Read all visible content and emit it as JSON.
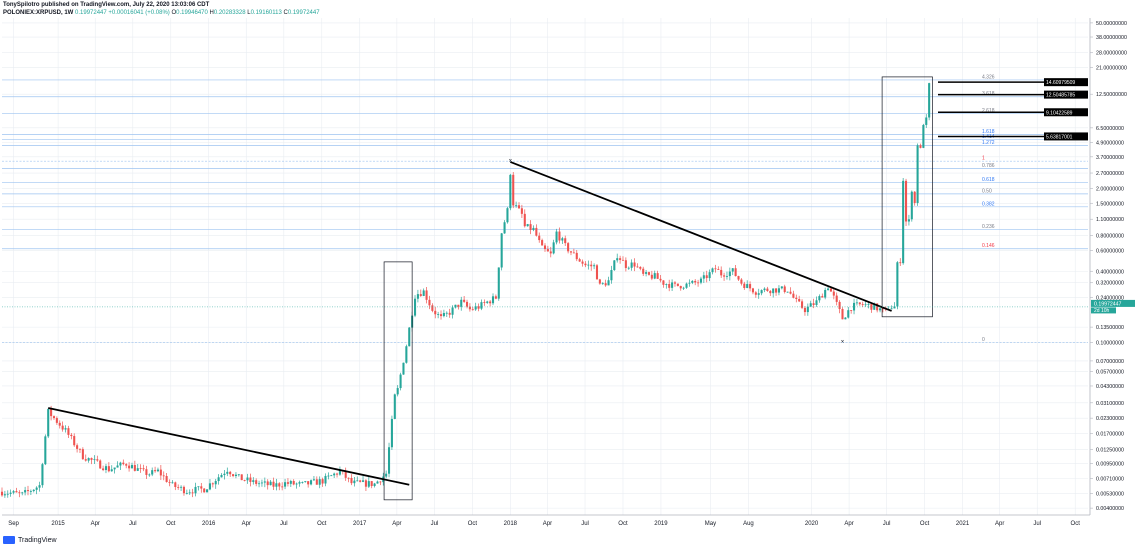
{
  "header": {
    "publisher_line": "TonySpilotro published on TradingView.com, July 22, 2020 13:03:06 CDT",
    "symbol": "POLONIEX:XRPUSD, 1W",
    "last_price": "0.19972447",
    "change": "+0.00016041 (+0.08%)",
    "o_label": "O",
    "o": "0.19946470",
    "h_label": "H",
    "h": "0.20283328",
    "l_label": "L",
    "l": "0.19160113",
    "c_label": "C",
    "c": "0.19972447"
  },
  "footer": {
    "brand": "TradingView"
  },
  "colors": {
    "up": "#26a69a",
    "down": "#ef5350",
    "grid": "#e9edf2",
    "fib": "#9ec3f0",
    "axis": "#b2b5be"
  },
  "chart_data": {
    "type": "candlestick",
    "price_scale": "log",
    "ylim": [
      0.0035,
      55
    ],
    "x_range": [
      "2014-08-18",
      "2021-11-01"
    ],
    "x_ticks": [
      {
        "date": "2014-09-15",
        "label": "Sep"
      },
      {
        "date": "2015-01-01",
        "label": "2015"
      },
      {
        "date": "2015-04-01",
        "label": "Apr"
      },
      {
        "date": "2015-07-01",
        "label": "Jul"
      },
      {
        "date": "2015-10-01",
        "label": "Oct"
      },
      {
        "date": "2016-01-01",
        "label": "2016"
      },
      {
        "date": "2016-04-01",
        "label": "Apr"
      },
      {
        "date": "2016-07-01",
        "label": "Jul"
      },
      {
        "date": "2016-10-01",
        "label": "Oct"
      },
      {
        "date": "2017-01-01",
        "label": "2017"
      },
      {
        "date": "2017-04-01",
        "label": "Apr"
      },
      {
        "date": "2017-07-01",
        "label": "Jul"
      },
      {
        "date": "2017-10-01",
        "label": "Oct"
      },
      {
        "date": "2018-01-01",
        "label": "2018"
      },
      {
        "date": "2018-04-01",
        "label": "Apr"
      },
      {
        "date": "2018-07-01",
        "label": "Jul"
      },
      {
        "date": "2018-10-01",
        "label": "Oct"
      },
      {
        "date": "2019-01-01",
        "label": "2019"
      },
      {
        "date": "2019-05-01",
        "label": "May"
      },
      {
        "date": "2019-08-01",
        "label": "Aug"
      },
      {
        "date": "2020-01-01",
        "label": "2020"
      },
      {
        "date": "2020-04-01",
        "label": "Apr"
      },
      {
        "date": "2020-07-01",
        "label": "Jul"
      },
      {
        "date": "2020-10-01",
        "label": "Oct"
      },
      {
        "date": "2021-01-01",
        "label": "2021"
      },
      {
        "date": "2021-04-01",
        "label": "Apr"
      },
      {
        "date": "2021-07-01",
        "label": "Jul"
      },
      {
        "date": "2021-10-01",
        "label": "Oct"
      }
    ],
    "y_ticks": [
      50,
      38,
      28,
      21,
      12.5,
      6.5,
      4.9,
      3.7,
      2.7,
      2.0,
      1.5,
      1.1,
      0.8,
      0.6,
      0.4,
      0.32,
      0.24,
      0.135,
      0.1,
      0.07,
      0.057,
      0.043,
      0.031,
      0.023,
      0.017,
      0.0125,
      0.0095,
      0.0071,
      0.0053,
      0.004
    ],
    "y_tick_labels": [
      "50.00000000",
      "38.00000000",
      "28.00000000",
      "21.00000000",
      "12.50000000",
      "6.50000000",
      "4.90000000",
      "3.70000000",
      "2.70000000",
      "2.00000000",
      "1.50000000",
      "1.10000000",
      "0.80000000",
      "0.60000000",
      "0.40000000",
      "0.32000000",
      "0.24000000",
      "0.13500000",
      "0.10000000",
      "0.07000000",
      "0.05700000",
      "0.04300000",
      "0.03100000",
      "0.02300000",
      "0.01700000",
      "0.01250000",
      "0.00950000",
      "0.00710000",
      "0.00530000",
      "0.00400000"
    ],
    "last_price_label": "0.19972447",
    "countdown_label": "2d 10h",
    "fib_levels": [
      {
        "ratio": "4.326",
        "price": 16.5,
        "color": "#787b86"
      },
      {
        "ratio": "3.618",
        "price": 11.9,
        "color": "#787b86"
      },
      {
        "ratio": "2.618",
        "price": 8.6,
        "color": "#787b86"
      },
      {
        "ratio": "1.618",
        "price": 5.7,
        "color": "#3179f5"
      },
      {
        "ratio": "1.414",
        "price": 5.2,
        "color": "#3179f5"
      },
      {
        "ratio": "1.272",
        "price": 4.6,
        "color": "#3179f5"
      },
      {
        "ratio": "1",
        "price": 3.4,
        "color": "#f23645"
      },
      {
        "ratio": "0.786",
        "price": 2.95,
        "color": "#787b86"
      },
      {
        "ratio": "0.618",
        "price": 2.25,
        "color": "#3179f5"
      },
      {
        "ratio": "0.50",
        "price": 1.8,
        "color": "#787b86"
      },
      {
        "ratio": "0.382",
        "price": 1.4,
        "color": "#3179f5"
      },
      {
        "ratio": "0.236",
        "price": 0.9,
        "color": "#787b86"
      },
      {
        "ratio": "0.146",
        "price": 0.62,
        "color": "#f23645"
      },
      {
        "ratio": "0",
        "price": 0.1,
        "color": "#787b86"
      }
    ],
    "target_labels": [
      {
        "text": "14.60979509",
        "price": 15.8
      },
      {
        "text": "12.50485785",
        "price": 12.4
      },
      {
        "text": "9.10422589",
        "price": 8.8
      },
      {
        "text": "5.63817001",
        "price": 5.5
      }
    ],
    "trendlines": [
      {
        "from": {
          "date": "2014-12-08",
          "price": 0.028
        },
        "to": {
          "date": "2017-05-01",
          "price": 0.0063
        }
      },
      {
        "from": {
          "date": "2018-01-01",
          "price": 3.35
        },
        "to": {
          "date": "2020-07-13",
          "price": 0.185
        }
      }
    ],
    "boxes": [
      {
        "from": {
          "date": "2017-03-01",
          "price": 0.48
        },
        "to": {
          "date": "2017-05-08",
          "price": 0.0047
        }
      },
      {
        "from": {
          "date": "2020-06-20",
          "price": 17.5
        },
        "to": {
          "date": "2020-10-20",
          "price": 0.165
        }
      }
    ],
    "markers": [
      {
        "date": "2018-01-01",
        "price": 3.45
      },
      {
        "date": "2020-03-16",
        "price": 0.102
      }
    ],
    "anchors": [
      [
        "2014-08-18",
        0.0055
      ],
      [
        "2014-10-06",
        0.0052
      ],
      [
        "2014-11-17",
        0.0062
      ],
      [
        "2014-12-08",
        0.026
      ],
      [
        "2015-01-19",
        0.018
      ],
      [
        "2015-03-02",
        0.011
      ],
      [
        "2015-05-04",
        0.0085
      ],
      [
        "2015-06-15",
        0.0095
      ],
      [
        "2015-07-27",
        0.008
      ],
      [
        "2015-08-10",
        0.0078
      ],
      [
        "2015-08-31",
        0.0082
      ],
      [
        "2015-10-05",
        0.0062
      ],
      [
        "2015-11-09",
        0.0056
      ],
      [
        "2015-12-21",
        0.0058
      ],
      [
        "2016-02-15",
        0.0085
      ],
      [
        "2016-03-14",
        0.0072
      ],
      [
        "2016-04-18",
        0.0066
      ],
      [
        "2016-06-06",
        0.0062
      ],
      [
        "2016-07-04",
        0.0065
      ],
      [
        "2016-08-15",
        0.0063
      ],
      [
        "2016-10-03",
        0.0068
      ],
      [
        "2016-11-14",
        0.0082
      ],
      [
        "2016-12-12",
        0.0065
      ],
      [
        "2017-02-06",
        0.0064
      ],
      [
        "2017-03-06",
        0.0078
      ],
      [
        "2017-03-27",
        0.035
      ],
      [
        "2017-04-03",
        0.04
      ],
      [
        "2017-04-24",
        0.095
      ],
      [
        "2017-05-15",
        0.25
      ],
      [
        "2017-05-22",
        0.26
      ],
      [
        "2017-06-05",
        0.27
      ],
      [
        "2017-06-26",
        0.19
      ],
      [
        "2017-07-17",
        0.16
      ],
      [
        "2017-08-07",
        0.18
      ],
      [
        "2017-09-04",
        0.22
      ],
      [
        "2017-09-25",
        0.19
      ],
      [
        "2017-10-16",
        0.2
      ],
      [
        "2017-11-06",
        0.22
      ],
      [
        "2017-11-27",
        0.24
      ],
      [
        "2017-12-11",
        0.85
      ],
      [
        "2017-12-25",
        1.3
      ],
      [
        "2018-01-01",
        2.75
      ],
      [
        "2018-01-08",
        1.5
      ],
      [
        "2018-01-29",
        1.2
      ],
      [
        "2018-02-05",
        0.95
      ],
      [
        "2018-02-26",
        0.9
      ],
      [
        "2018-03-19",
        0.62
      ],
      [
        "2018-04-09",
        0.55
      ],
      [
        "2018-04-23",
        0.85
      ],
      [
        "2018-05-14",
        0.65
      ],
      [
        "2018-06-11",
        0.52
      ],
      [
        "2018-07-02",
        0.45
      ],
      [
        "2018-07-23",
        0.44
      ],
      [
        "2018-08-06",
        0.3
      ],
      [
        "2018-08-27",
        0.33
      ],
      [
        "2018-09-17",
        0.55
      ],
      [
        "2018-10-08",
        0.45
      ],
      [
        "2018-10-29",
        0.46
      ],
      [
        "2018-11-19",
        0.37
      ],
      [
        "2018-12-17",
        0.36
      ],
      [
        "2019-01-07",
        0.32
      ],
      [
        "2019-02-04",
        0.3
      ],
      [
        "2019-03-11",
        0.31
      ],
      [
        "2019-04-08",
        0.33
      ],
      [
        "2019-05-13",
        0.42
      ],
      [
        "2019-05-27",
        0.38
      ],
      [
        "2019-06-24",
        0.4
      ],
      [
        "2019-07-15",
        0.32
      ],
      [
        "2019-08-19",
        0.27
      ],
      [
        "2019-09-16",
        0.28
      ],
      [
        "2019-10-07",
        0.28
      ],
      [
        "2019-11-04",
        0.28
      ],
      [
        "2019-11-25",
        0.22
      ],
      [
        "2019-12-16",
        0.19
      ],
      [
        "2020-01-13",
        0.22
      ],
      [
        "2020-02-10",
        0.3
      ],
      [
        "2020-02-24",
        0.24
      ],
      [
        "2020-03-16",
        0.16
      ],
      [
        "2020-04-06",
        0.2
      ],
      [
        "2020-05-04",
        0.21
      ],
      [
        "2020-06-01",
        0.2
      ],
      [
        "2020-06-29",
        0.18
      ],
      [
        "2020-07-06",
        0.2
      ],
      [
        "2020-07-20",
        0.2
      ],
      [
        "2020-07-27",
        0.45
      ],
      [
        "2020-08-03",
        0.5
      ],
      [
        "2020-08-10",
        2.4
      ],
      [
        "2020-08-17",
        1.05
      ],
      [
        "2020-08-24",
        1.05
      ],
      [
        "2020-08-31",
        2.0
      ],
      [
        "2020-09-07",
        1.5
      ],
      [
        "2020-09-14",
        4.8
      ],
      [
        "2020-09-21",
        4.2
      ],
      [
        "2020-09-28",
        7.2
      ],
      [
        "2020-10-05",
        7.5
      ],
      [
        "2020-10-12",
        14.8
      ]
    ]
  }
}
